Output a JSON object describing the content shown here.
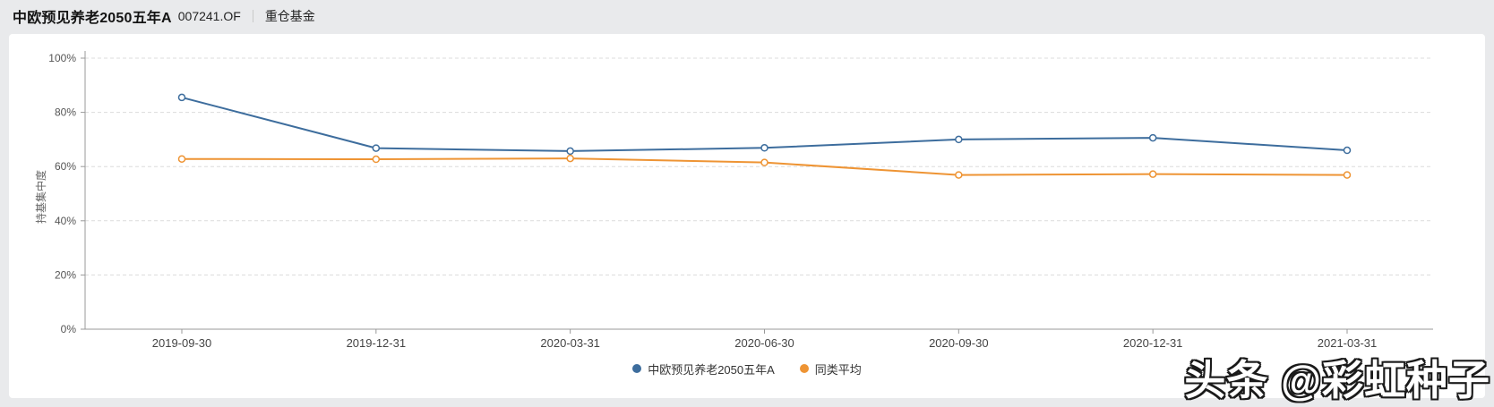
{
  "header": {
    "title": "中欧预见养老2050五年A",
    "code": "007241.OF",
    "tab": "重仓基金"
  },
  "chart_data": {
    "type": "line",
    "title": "",
    "xlabel": "",
    "ylabel": "持基集中度",
    "x": [
      "2019-09-30",
      "2019-12-31",
      "2020-03-31",
      "2020-06-30",
      "2020-09-30",
      "2020-12-31",
      "2021-03-31"
    ],
    "series": [
      {
        "name": "中欧预见养老2050五年A",
        "color": "#3d6d9d",
        "values": [
          85.5,
          66.8,
          65.7,
          66.9,
          70.0,
          70.6,
          66.0
        ]
      },
      {
        "name": "同类平均",
        "color": "#ee9434",
        "values": [
          62.8,
          62.7,
          63.0,
          61.5,
          56.9,
          57.2,
          56.9
        ]
      }
    ],
    "ylim": [
      0,
      100
    ],
    "yticks": [
      0,
      20,
      40,
      60,
      80,
      100
    ],
    "ytick_suffix": "%",
    "grid": "horizontal-dashed",
    "legend_position": "bottom-center",
    "marker": "open-circle",
    "style": {
      "grid_color": "#dcdcdc",
      "axis_color": "#999999",
      "ytick_label_color": "#555555",
      "xtick_label_color": "#444444",
      "ylabel_color": "#666666"
    }
  },
  "watermark": {
    "text": "头条 @彩虹种子"
  }
}
